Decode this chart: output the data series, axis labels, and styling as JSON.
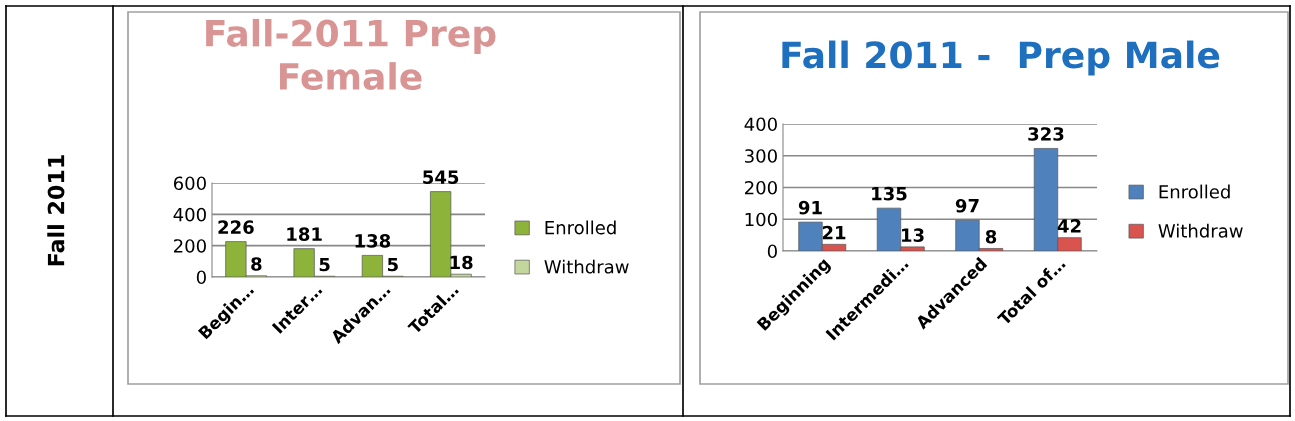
{
  "chart_data": [
    {
      "type": "bar",
      "title": "Fall-2011 Prep\nFemale",
      "annotations": [
        "Fall 2011"
      ],
      "categories": [
        "Begin…",
        "Inter…",
        "Advan…",
        "Total…"
      ],
      "series": [
        {
          "name": "Enrolled",
          "color": "#8db33a",
          "values": [
            226,
            181,
            138,
            545
          ]
        },
        {
          "name": "Withdraw",
          "color": "#c3d69b",
          "values": [
            8,
            5,
            5,
            18
          ]
        }
      ],
      "ylim": [
        0,
        600
      ],
      "yticks": [
        0,
        200,
        400,
        600
      ],
      "grid": "y",
      "legend": "right",
      "data_labels": true
    },
    {
      "type": "bar",
      "title": "Fall 2011 -  Prep Male",
      "categories": [
        "Beginning",
        "Intermedi…",
        "Advanced",
        "Total of…"
      ],
      "series": [
        {
          "name": "Enrolled",
          "color": "#4f81bd",
          "values": [
            91,
            135,
            97,
            323
          ]
        },
        {
          "name": "Withdraw",
          "color": "#d9534f",
          "values": [
            21,
            13,
            8,
            42
          ]
        }
      ],
      "ylim": [
        0,
        400
      ],
      "yticks": [
        0,
        100,
        200,
        300,
        400
      ],
      "grid": "y",
      "legend": "right",
      "data_labels": true
    }
  ]
}
